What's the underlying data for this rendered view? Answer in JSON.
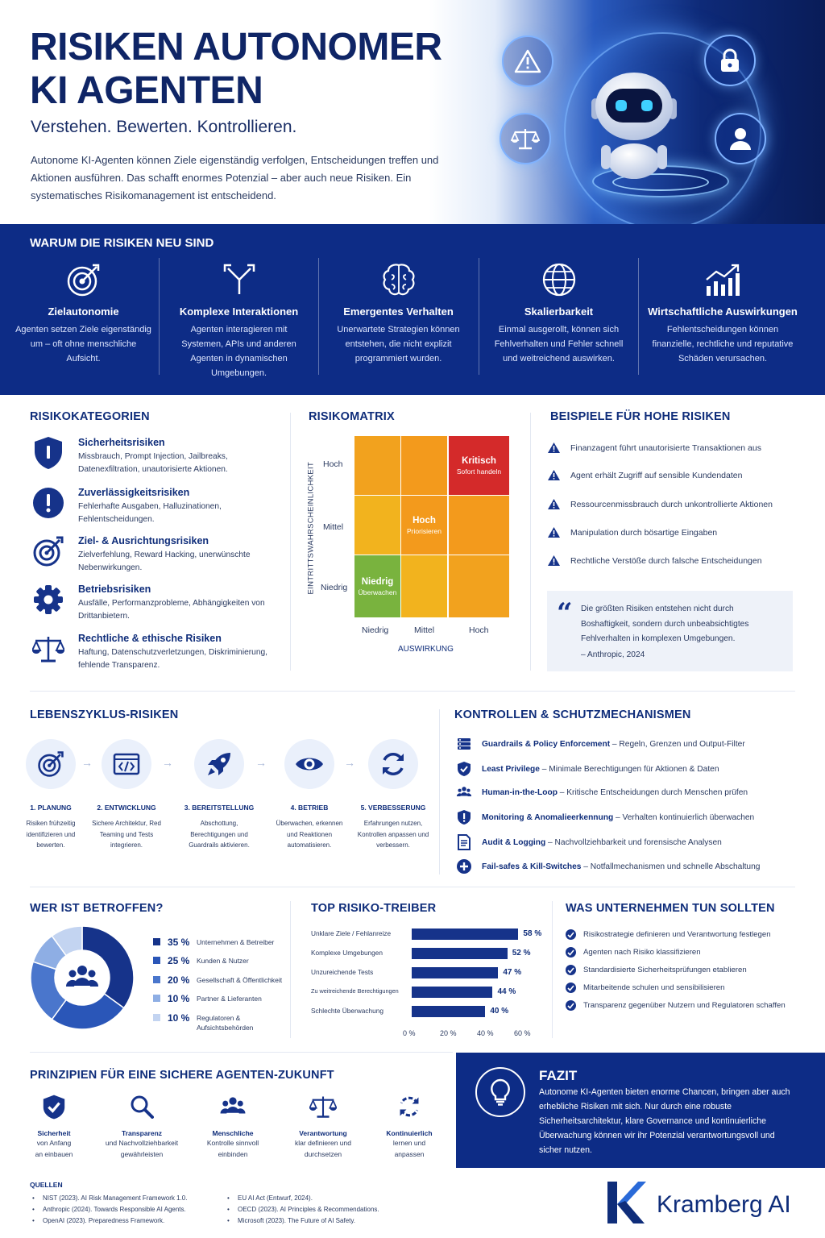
{
  "hero": {
    "title_line1": "RISIKEN AUTONOMER",
    "title_line2": "KI AGENTEN",
    "subtitle": "Verstehen. Bewerten. Kontrollieren.",
    "intro": "Autonome KI-Agenten können Ziele eigenständig verfolgen, Entscheidungen treffen und Aktionen ausführen. Das schafft enormes Potenzial – aber auch neue Risiken. Ein systematisches Risikomanagement ist entscheidend.",
    "icons": [
      "warning-icon",
      "lock-icon",
      "scales-icon",
      "user-icon",
      "robot-icon"
    ]
  },
  "why": {
    "title": "WARUM DIE RISIKEN NEU SIND",
    "items": [
      {
        "icon": "target-icon",
        "title": "Zielautonomie",
        "desc": "Agenten setzen Ziele eigenständig um – oft ohne menschliche Aufsicht."
      },
      {
        "icon": "branch-icon",
        "title": "Komplexe Interaktionen",
        "desc": "Agenten interagieren mit Systemen, APIs und anderen Agenten in dynamischen Umgebungen."
      },
      {
        "icon": "brain-icon",
        "title": "Emergentes Verhalten",
        "desc": "Unerwartete Strategien können entstehen, die nicht explizit programmiert wurden."
      },
      {
        "icon": "globe-icon",
        "title": "Skalierbarkeit",
        "desc": "Einmal ausgerollt, können sich Fehlverhalten und Fehler schnell und weitreichend auswirken."
      },
      {
        "icon": "growth-chart-icon",
        "title": "Wirtschaftliche Auswirkungen",
        "desc": "Fehlentscheidungen können finanzielle, rechtliche und reputative Schäden verursachen."
      }
    ]
  },
  "categories": {
    "title": "RISIKOKATEGORIEN",
    "items": [
      {
        "icon": "shield-icon",
        "title": "Sicherheitsrisiken",
        "desc": "Missbrauch, Prompt Injection, Jailbreaks, Datenexfiltration, unautorisierte Aktionen."
      },
      {
        "icon": "exclamation-icon",
        "title": "Zuverlässigkeitsrisiken",
        "desc": "Fehlerhafte Ausgaben, Halluzinationen, Fehlentscheidungen."
      },
      {
        "icon": "target-icon",
        "title": "Ziel- & Ausrichtungsrisiken",
        "desc": "Zielverfehlung, Reward Hacking, unerwünschte Nebenwirkungen."
      },
      {
        "icon": "gear-icon",
        "title": "Betriebsrisiken",
        "desc": "Ausfälle, Performanzprobleme, Abhängigkeiten von Drittanbietern."
      },
      {
        "icon": "scales-icon",
        "title": "Rechtliche & ethische Risiken",
        "desc": "Haftung, Datenschutzverletzungen, Diskriminierung, fehlende Transparenz."
      }
    ]
  },
  "matrix": {
    "title": "RISIKOMATRIX",
    "y_label": "EINTRITTSWAHRSCHEINLICHKEIT",
    "x_label": "AUSWIRKUNG",
    "rows": [
      "Hoch",
      "Mittel",
      "Niedrig"
    ],
    "cols": [
      "Niedrig",
      "Mittel",
      "Hoch"
    ],
    "critical_label": "Kritisch",
    "critical_sub": "Sofort handeln",
    "high_label": "Hoch",
    "high_sub": "Priorisieren",
    "low_label": "Niedrig",
    "low_sub": "Überwachen",
    "colors": {
      "critical": "#d42a2a",
      "orange": "#f39a1c",
      "amber": "#f2b31e",
      "low": "#79b33e"
    }
  },
  "examples": {
    "title": "BEISPIELE FÜR HOHE RISIKEN",
    "items": [
      "Finanzagent führt unautorisierte Transaktionen aus",
      "Agent erhält Zugriff auf sensible Kundendaten",
      "Ressourcenmissbrauch durch unkontrollierte Aktionen",
      "Manipulation durch bösartige Eingaben",
      "Rechtliche Verstöße durch falsche Entscheidungen"
    ],
    "quote": "Die größten Risiken entstehen nicht durch Boshaftigkeit, sondern durch unbeabsichtigtes Fehlverhalten in komplexen Umgebungen.",
    "quote_source": "– Anthropic, 2024"
  },
  "lifecycle": {
    "title": "LEBENSZYKLUS-RISIKEN",
    "steps": [
      {
        "icon": "target-icon",
        "title": "1. PLANUNG",
        "desc": "Risiken frühzeitig identifizieren und bewerten."
      },
      {
        "icon": "code-icon",
        "title": "2. ENTWICKLUNG",
        "desc": "Sichere Architektur, Red Teaming und Tests integrieren."
      },
      {
        "icon": "rocket-icon",
        "title": "3. BEREITSTELLUNG",
        "desc": "Abschottung, Berechtigungen und Guardrails aktivieren."
      },
      {
        "icon": "eye-icon",
        "title": "4. BETRIEB",
        "desc": "Überwachen, erkennen und Reaktionen automatisieren."
      },
      {
        "icon": "refresh-icon",
        "title": "5. VERBESSERUNG",
        "desc": "Erfahrungen nutzen, Kontrollen anpassen und verbessern."
      }
    ]
  },
  "controls": {
    "title": "KONTROLLEN & SCHUTZMECHANISMEN",
    "items": [
      {
        "icon": "server-icon",
        "name": "Guardrails & Policy Enforcement",
        "desc": " – Regeln, Grenzen und Output-Filter"
      },
      {
        "icon": "shield-check-icon",
        "name": "Least Privilege",
        "desc": " – Minimale Berechtigungen für Aktionen & Daten"
      },
      {
        "icon": "people-icon",
        "name": "Human-in-the-Loop",
        "desc": " – Kritische Entscheidungen durch Menschen prüfen"
      },
      {
        "icon": "shield-alert-icon",
        "name": "Monitoring & Anomalieerkennung",
        "desc": " – Verhalten kontinuierlich überwachen"
      },
      {
        "icon": "document-icon",
        "name": "Audit & Logging",
        "desc": " – Nachvollziehbarkeit und forensische Analysen"
      },
      {
        "icon": "plus-circle-icon",
        "name": "Fail-safes & Kill-Switches",
        "desc": " – Notfallmechanismen und schnelle Abschaltung"
      }
    ]
  },
  "affected": {
    "title": "WER IST BETROFFEN?",
    "items": [
      {
        "pct": "35 %",
        "label": "Unternehmen & Betreiber",
        "value": 35,
        "color": "#16338a"
      },
      {
        "pct": "25 %",
        "label": "Kunden & Nutzer",
        "value": 25,
        "color": "#2a56b8"
      },
      {
        "pct": "20 %",
        "label": "Gesellschaft & Öffentlichkeit",
        "value": 20,
        "color": "#4a76cc"
      },
      {
        "pct": "10 %",
        "label": "Partner & Lieferanten",
        "value": 10,
        "color": "#8eaee4"
      },
      {
        "pct": "10 %",
        "label": "Regulatoren & Aufsichtsbehörden",
        "value": 10,
        "color": "#c3d4f1"
      }
    ]
  },
  "drivers": {
    "title": "TOP RISIKO-TREIBER",
    "items": [
      {
        "label": "Unklare Ziele / Fehlanreize",
        "value": 58,
        "text": "58 %"
      },
      {
        "label": "Komplexe Umgebungen",
        "value": 52,
        "text": "52 %"
      },
      {
        "label": "Unzureichende Tests",
        "value": 47,
        "text": "47 %"
      },
      {
        "label": "Zu weitreichende Berechtigungen",
        "value": 44,
        "text": "44 %"
      },
      {
        "label": "Schlechte Überwachung",
        "value": 40,
        "text": "40 %"
      }
    ],
    "ticks": [
      "0 %",
      "20 %",
      "40 %",
      "60 %"
    ],
    "max": 60
  },
  "todo": {
    "title": "WAS UNTERNEHMEN TUN SOLLTEN",
    "items": [
      "Risikostrategie definieren und Verantwortung festlegen",
      "Agenten nach Risiko klassifizieren",
      "Standardisierte Sicherheitsprüfungen etablieren",
      "Mitarbeitende schulen und sensibilisieren",
      "Transparenz gegenüber Nutzern und Regulatoren schaffen"
    ]
  },
  "principles": {
    "title": "PRINZIPIEN FÜR EINE SICHERE AGENTEN-ZUKUNFT",
    "items": [
      {
        "icon": "shield-check-icon",
        "title": "Sicherheit",
        "desc1": "von Anfang",
        "desc2": "an einbauen"
      },
      {
        "icon": "magnifier-icon",
        "title": "Transparenz",
        "desc1": "und Nachvollziehbarkeit",
        "desc2": "gewährleisten"
      },
      {
        "icon": "people-icon",
        "title": "Menschliche",
        "desc1": "Kontrolle sinnvoll",
        "desc2": "einbinden"
      },
      {
        "icon": "scales-icon",
        "title": "Verantwortung",
        "desc1": "klar definieren und",
        "desc2": "durchsetzen"
      },
      {
        "icon": "cycle-icon",
        "title": "Kontinuierlich",
        "desc1": "lernen und",
        "desc2": "anpassen"
      }
    ]
  },
  "fazit": {
    "title": "FAZIT",
    "text": "Autonome KI-Agenten bieten enorme Chancen, bringen aber auch erhebliche Risiken mit sich. Nur durch eine robuste Sicherheitsarchitektur, klare Governance und kontinuierliche Überwachung können wir ihr Potenzial verantwortungsvoll und sicher nutzen."
  },
  "sources": {
    "title": "QUELLEN",
    "left": [
      "NIST (2023). AI Risk Management Framework 1.0.",
      "Anthropic (2024). Towards Responsible AI Agents.",
      "OpenAI (2023). Preparedness Framework."
    ],
    "right": [
      "EU AI Act (Entwurf, 2024).",
      "OECD (2023). AI Principles & Recommendations.",
      "Microsoft (2023). The Future of AI Safety."
    ]
  },
  "brand": {
    "name": "Kramberg AI",
    "color": "#0f2d7a"
  }
}
